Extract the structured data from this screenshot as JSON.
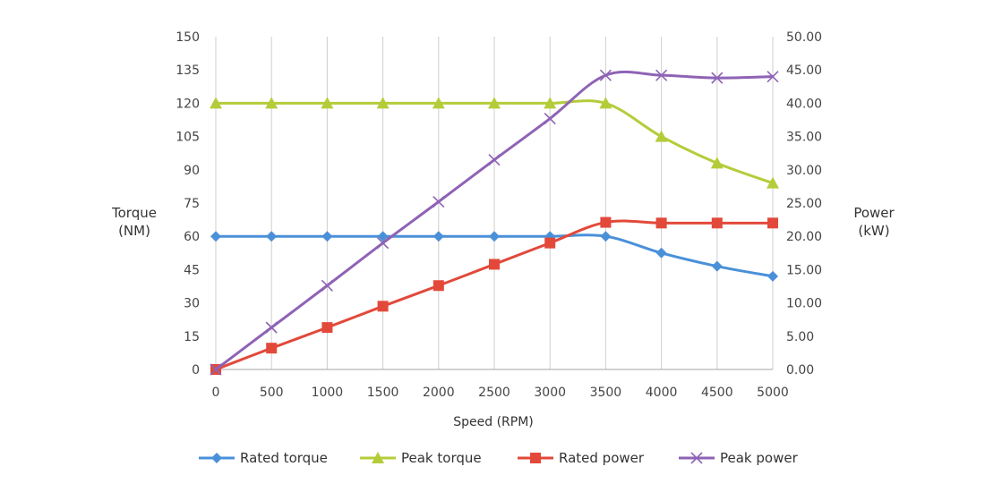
{
  "chart_data": {
    "type": "line",
    "xlabel": "Speed (RPM)",
    "ylabel_left": [
      "Torque",
      "(NM)"
    ],
    "ylabel_right": [
      "Power",
      "(kW)"
    ],
    "x": [
      0,
      500,
      1000,
      1500,
      2000,
      2500,
      3000,
      3500,
      4000,
      4500,
      5000
    ],
    "x_ticks": [
      "0",
      "500",
      "1000",
      "1500",
      "2000",
      "2500",
      "3000",
      "3500",
      "4000",
      "4500",
      "5000"
    ],
    "ylim_left": [
      0,
      150
    ],
    "ylim_right": [
      0,
      50
    ],
    "left_ticks": [
      "0",
      "15",
      "30",
      "45",
      "60",
      "75",
      "90",
      "105",
      "120",
      "135",
      "150"
    ],
    "right_ticks": [
      "0.00",
      "5.00",
      "10.00",
      "15.00",
      "20.00",
      "25.00",
      "30.00",
      "35.00",
      "40.00",
      "45.00",
      "50.00"
    ],
    "grid": "vertical",
    "legend_position": "bottom",
    "series": [
      {
        "name": "Rated torque",
        "axis": "left",
        "color": "#4a90d9",
        "marker": "diamond",
        "values": [
          60,
          60,
          60,
          60,
          60,
          60,
          60,
          60,
          52.5,
          46.5,
          42
        ]
      },
      {
        "name": "Peak torque",
        "axis": "left",
        "color": "#b5cc3a",
        "marker": "triangle",
        "values": [
          120,
          120,
          120,
          120,
          120,
          120,
          120,
          120,
          105,
          93,
          84
        ]
      },
      {
        "name": "Rated power",
        "axis": "right",
        "color": "#e2493a",
        "marker": "square",
        "values": [
          0,
          3.2,
          6.3,
          9.5,
          12.6,
          15.8,
          19,
          22.1,
          22,
          22,
          22
        ]
      },
      {
        "name": "Peak power",
        "axis": "right",
        "color": "#8e63b5",
        "marker": "x",
        "values": [
          0,
          6.3,
          12.6,
          19,
          25.2,
          31.5,
          37.7,
          44.2,
          44.2,
          43.8,
          44
        ]
      }
    ]
  }
}
